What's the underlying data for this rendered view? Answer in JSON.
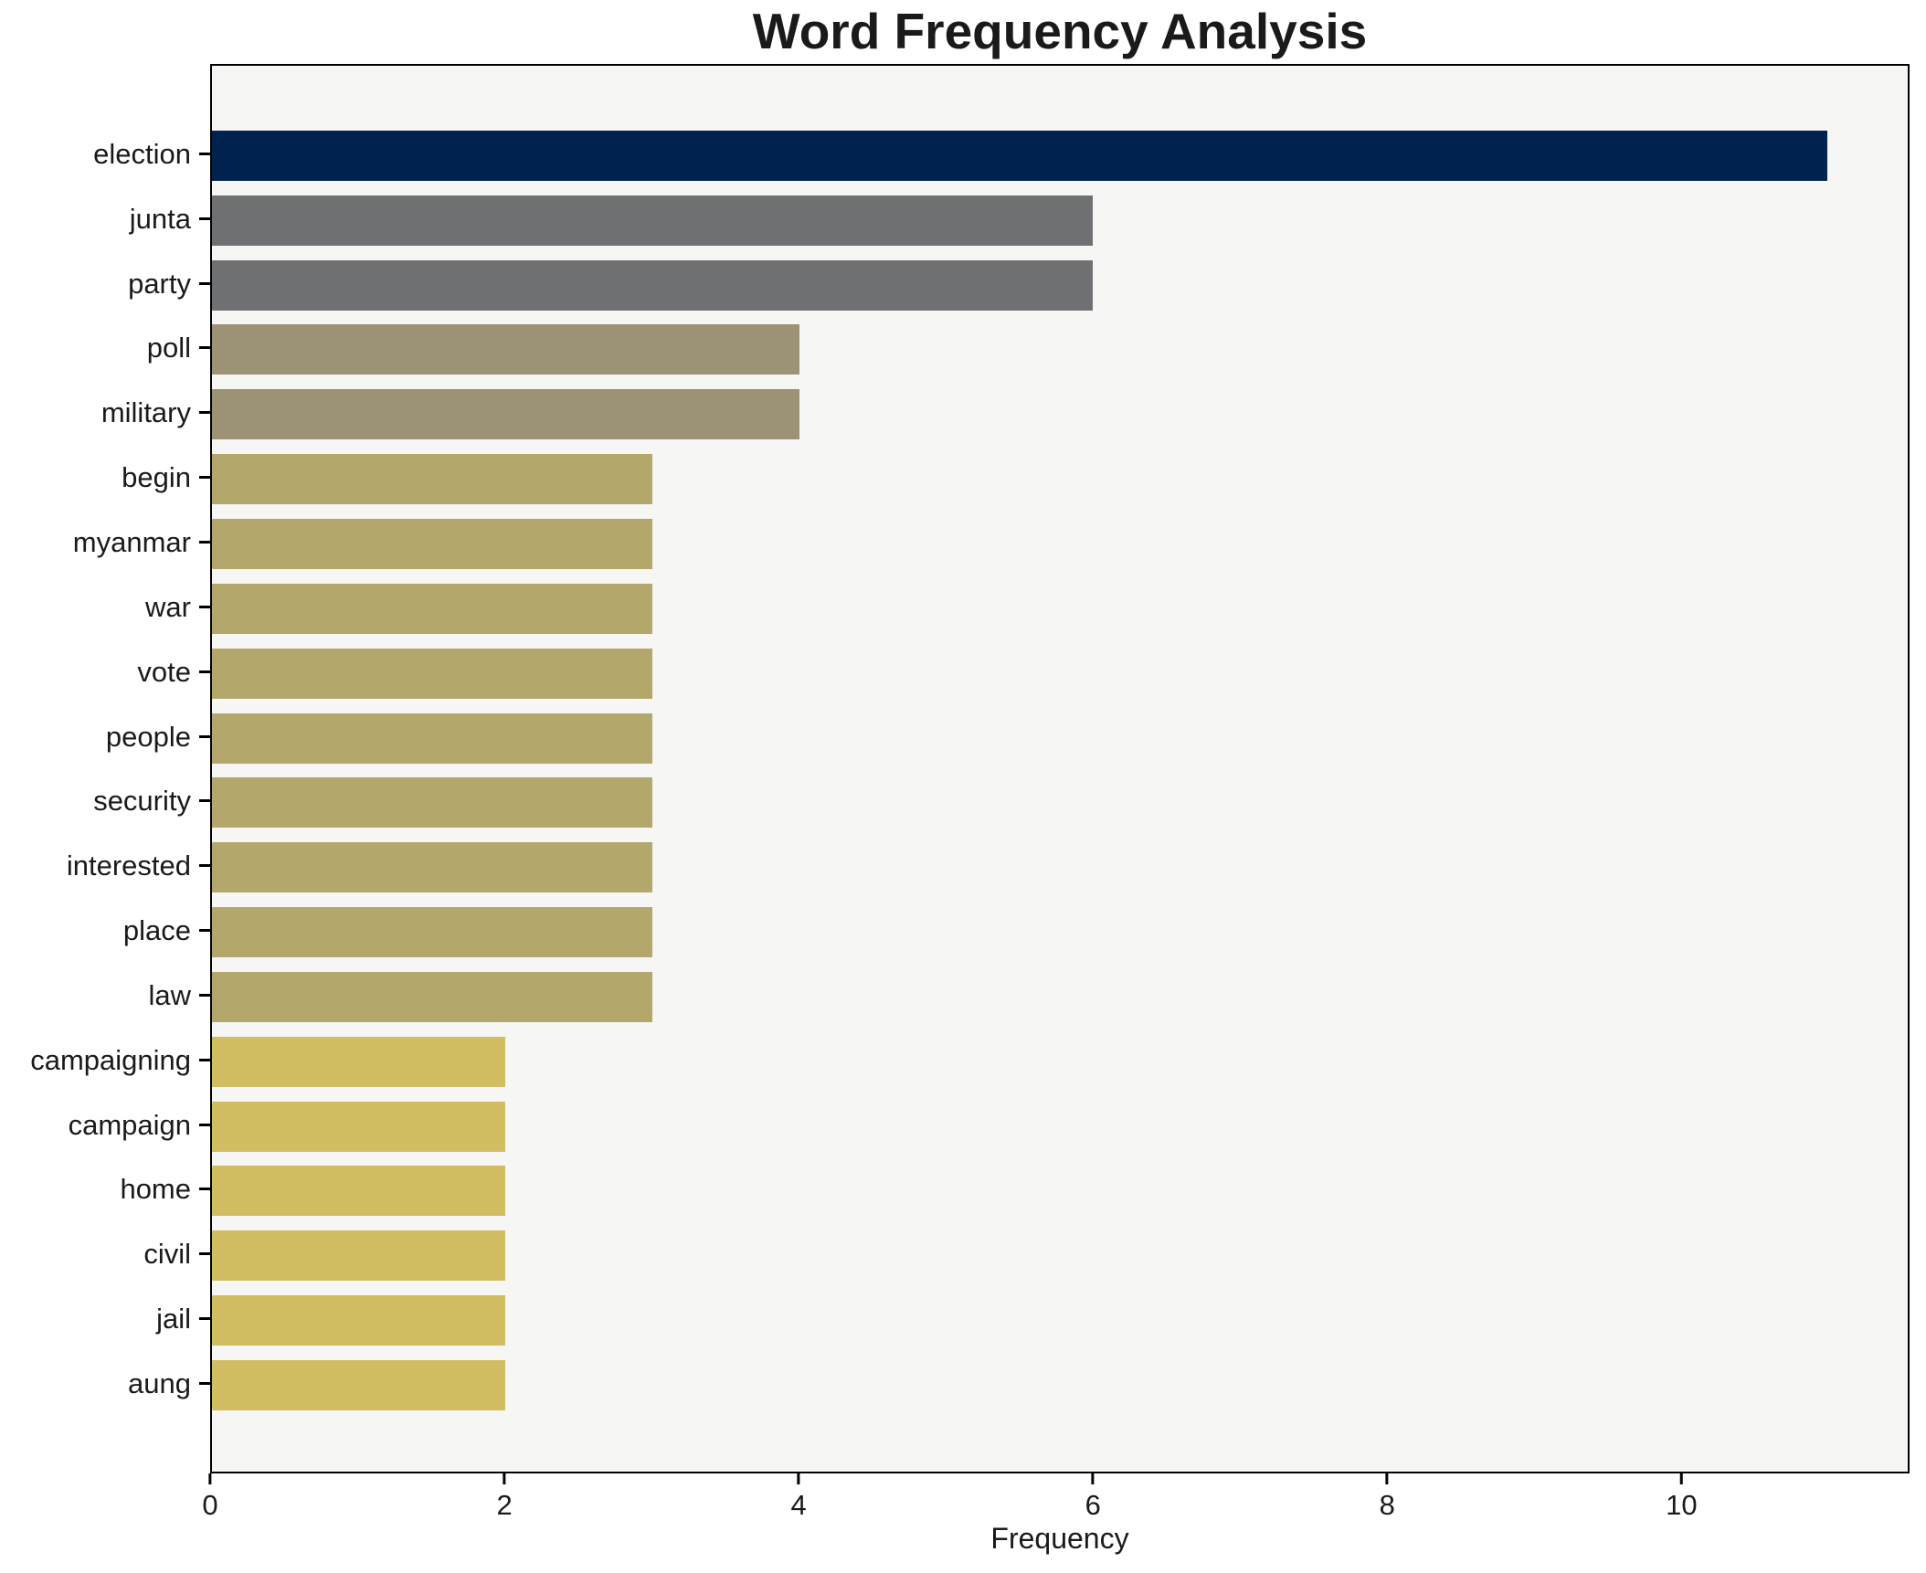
{
  "figure": {
    "background": "#ffffff",
    "plot_background": "#f6f6f5",
    "spine_color": "#000000",
    "text_color": "#1a1a1a"
  },
  "chart_data": {
    "type": "bar",
    "orientation": "horizontal",
    "title": "Word Frequency Analysis",
    "xlabel": "Frequency",
    "ylabel": "",
    "categories": [
      "election",
      "junta",
      "party",
      "poll",
      "military",
      "begin",
      "myanmar",
      "war",
      "vote",
      "people",
      "security",
      "interested",
      "place",
      "law",
      "campaigning",
      "campaign",
      "home",
      "civil",
      "jail",
      "aung"
    ],
    "values": [
      11,
      6,
      6,
      4,
      4,
      3,
      3,
      3,
      3,
      3,
      3,
      3,
      3,
      3,
      2,
      2,
      2,
      2,
      2,
      2
    ],
    "bar_colors": [
      "#00224e",
      "#6f7072",
      "#6f7072",
      "#9c9376",
      "#9c9376",
      "#b3a76c",
      "#b3a76c",
      "#b3a76c",
      "#b3a76c",
      "#b3a76c",
      "#b3a76c",
      "#b3a76c",
      "#b3a76c",
      "#b3a76c",
      "#d1bd62",
      "#d1bd62",
      "#d1bd62",
      "#d1bd62",
      "#d1bd62",
      "#d1bd62"
    ],
    "x_ticks": [
      0,
      2,
      4,
      6,
      8,
      10
    ],
    "xlim": [
      0,
      11.55
    ],
    "grid": false,
    "legend": false
  }
}
